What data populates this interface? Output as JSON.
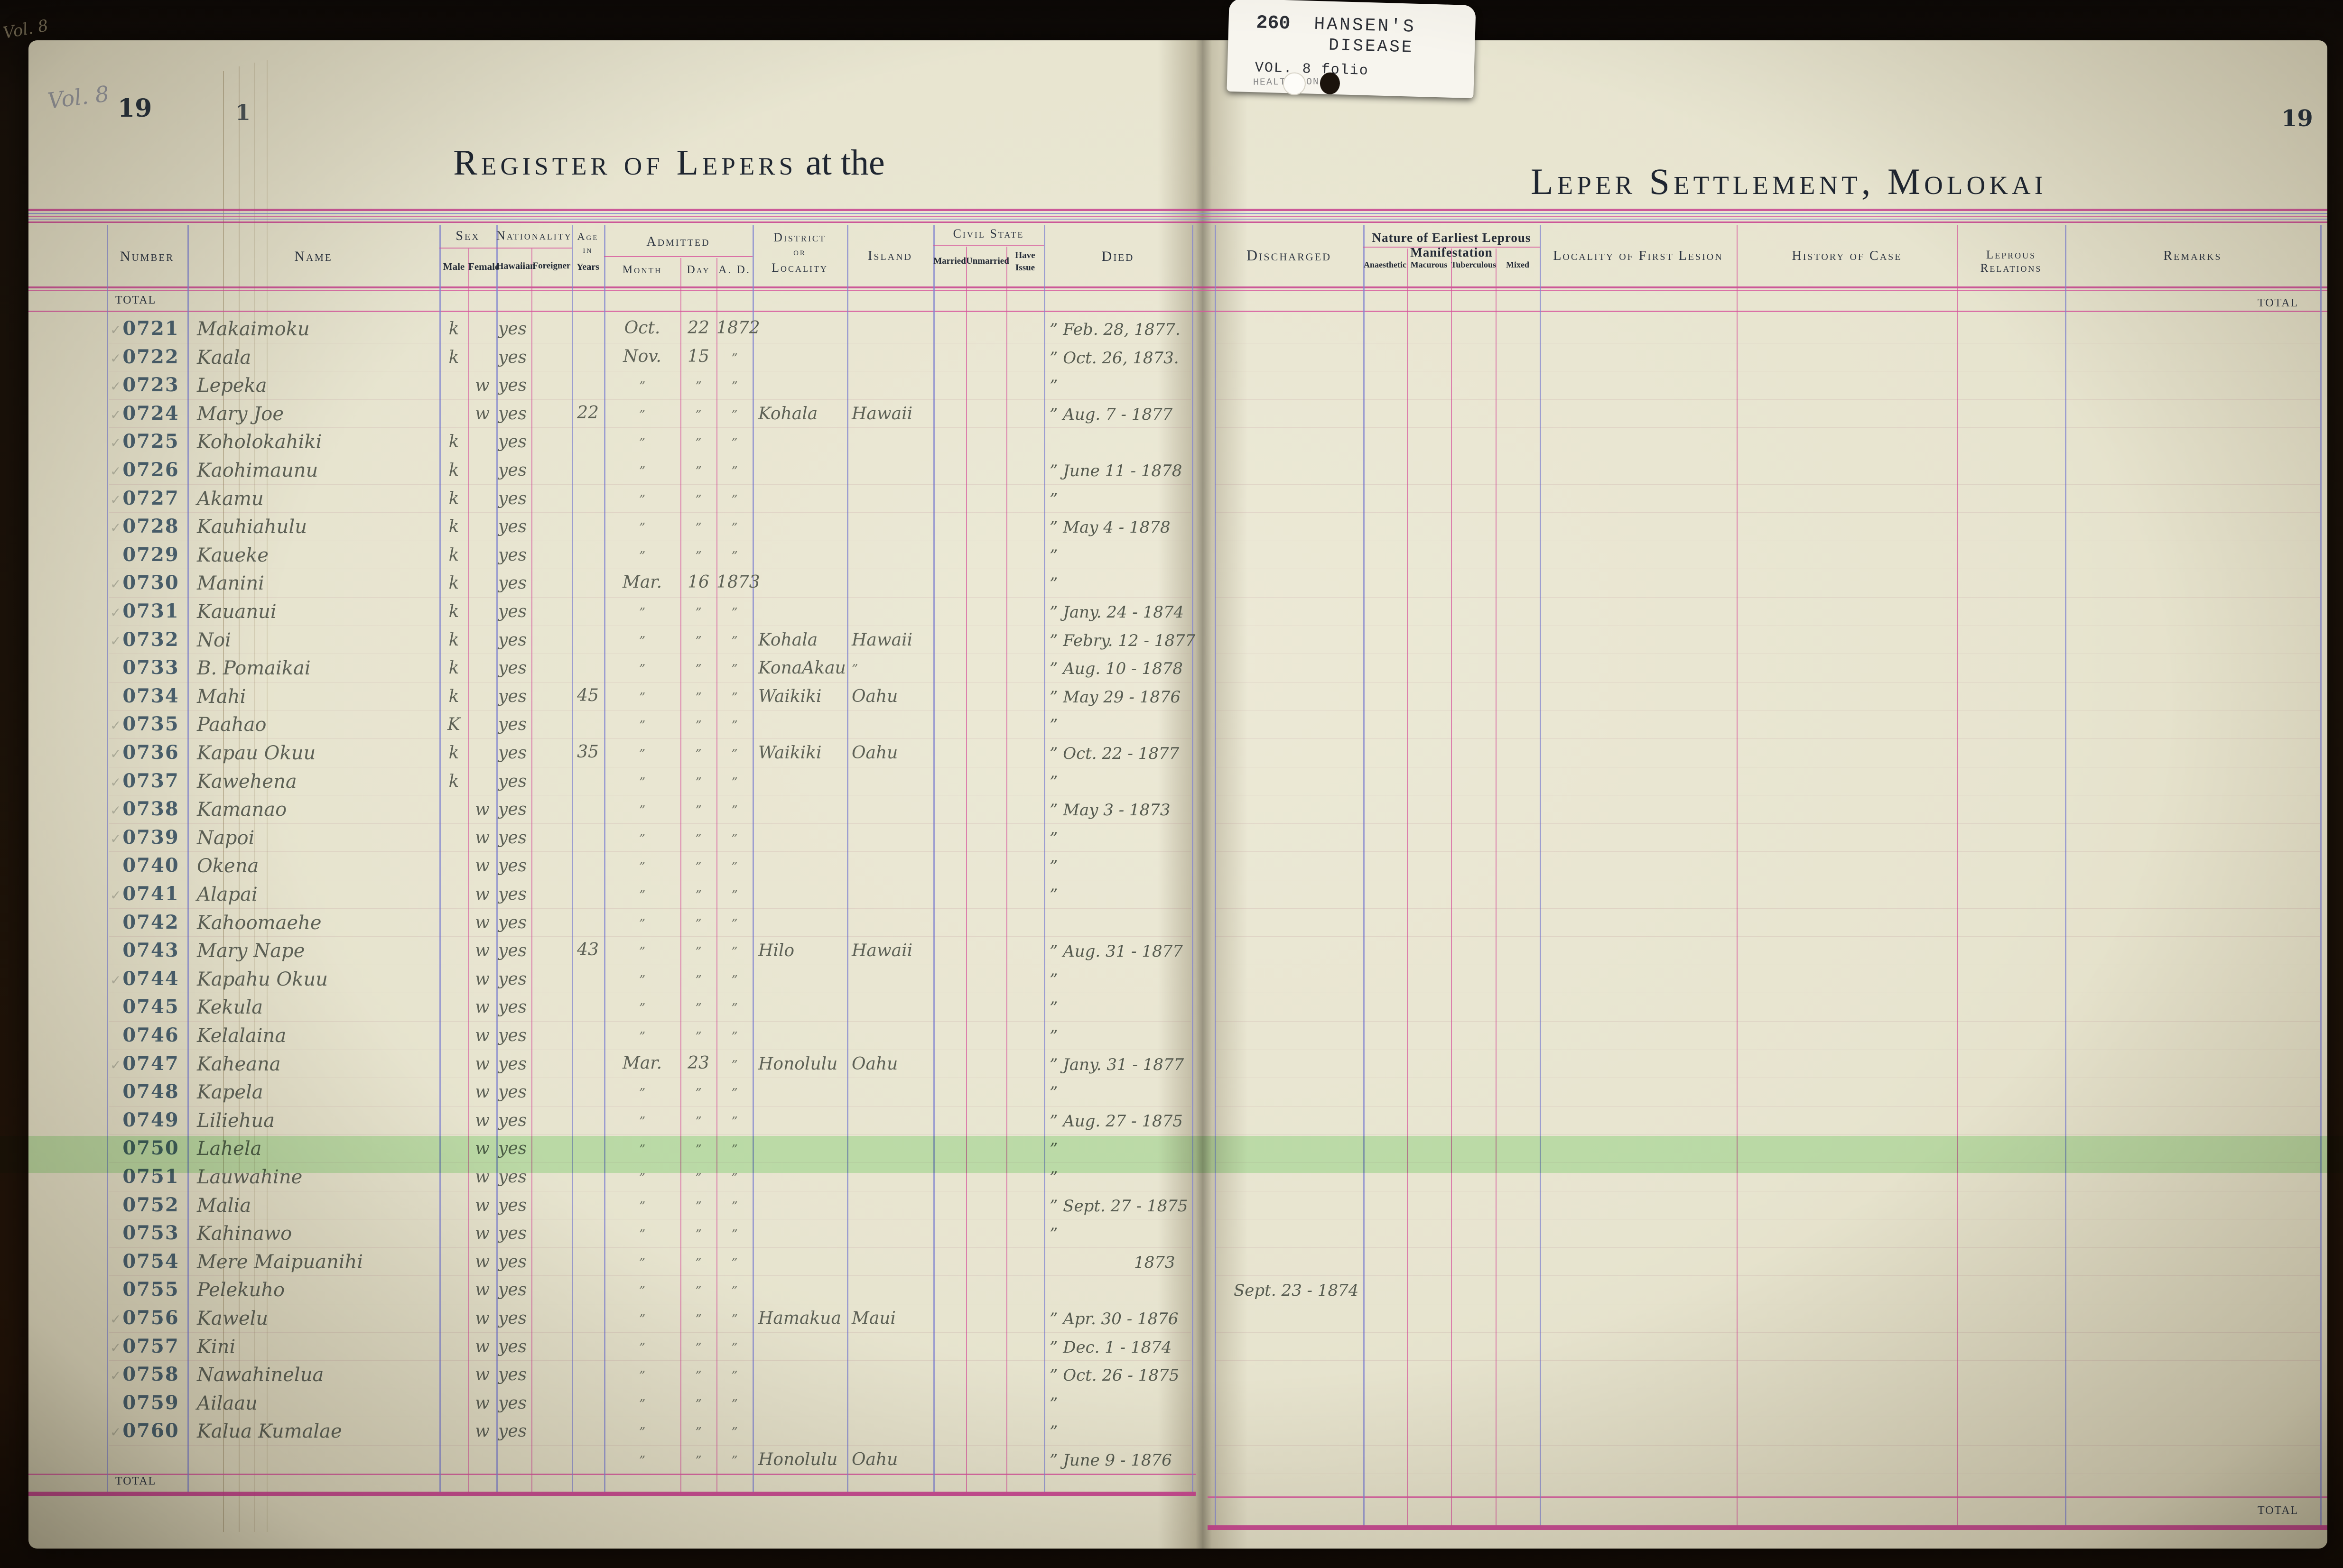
{
  "folio_tab": {
    "number": "260",
    "line1": "HANSEN'S",
    "line2": "DISEASE",
    "line3": "VOL. 8 folio",
    "line4": "HEALTH/CON"
  },
  "spine_notes": {
    "volume_note": "Vol. 8",
    "under_page_number": "1"
  },
  "left_page": {
    "page_number": "19",
    "title_main": "Register of Lepers",
    "title_suffix": "at the",
    "total_top_label": "TOTAL",
    "total_bottom_label": "TOTAL"
  },
  "right_page": {
    "page_number": "19",
    "title_main": "Leper Settlement, Molokai",
    "total_top_label": "TOTAL",
    "total_bottom_label": "TOTAL"
  },
  "columns": {
    "number": "Number",
    "name": "Name",
    "sex": "Sex",
    "male": "Male",
    "female": "Female",
    "nationality": "Nationality",
    "hawaiian": "Hawaiian",
    "foreigner": "Foreigner",
    "age_line1": "Age",
    "age_line2": "in",
    "age_line3": "Years",
    "admitted": "Admitted",
    "month": "Month",
    "day": "Day",
    "ad": "A. D.",
    "district_line1": "District",
    "district_line2": "or",
    "district_line3": "Locality",
    "island": "Island",
    "civil_state": "Civil State",
    "married": "Married",
    "unmarried": "Unmarried",
    "have_issue_line1": "Have",
    "have_issue_line2": "Issue",
    "died": "Died",
    "discharged": "Discharged",
    "nature": "Nature of Earliest Leprous Manifestation",
    "anaesthetic": "Anaesthetic",
    "macurous": "Macurous",
    "tuberculous": "Tuberculous",
    "mixed": "Mixed",
    "locality_first_lesion": "Locality of First Lesion",
    "history_of_case": "History of Case",
    "leprous_relations": "Leprous Relations",
    "remarks": "Remarks"
  },
  "highlight_color": "#9de89a",
  "rows": [
    {
      "n": "0721",
      "name": "Makaimoku",
      "sex": "k",
      "nat": "yes",
      "age": "",
      "mo": "Oct.",
      "dy": "22",
      "ad": "1872",
      "dist": "",
      "isl": "",
      "died": "Feb. 28, 1877.",
      "dd": true,
      "disch": "",
      "chk": true,
      "hl": false,
      "indent": false
    },
    {
      "n": "0722",
      "name": "Kaala",
      "sex": "k",
      "nat": "yes",
      "age": "",
      "mo": "Nov.",
      "dy": "15",
      "ad": "”",
      "dist": "",
      "isl": "",
      "died": "Oct. 26, 1873.",
      "dd": true,
      "disch": "",
      "chk": true,
      "hl": false,
      "indent": false
    },
    {
      "n": "0723",
      "name": "Lepeka",
      "sex": "w",
      "nat": "yes",
      "age": "",
      "mo": "”",
      "dy": "”",
      "ad": "”",
      "dist": "",
      "isl": "",
      "died": "",
      "dd": true,
      "disch": "",
      "chk": true,
      "hl": false,
      "indent": false
    },
    {
      "n": "0724",
      "name": "Mary Joe",
      "sex": "w",
      "nat": "yes",
      "age": "22",
      "mo": "”",
      "dy": "”",
      "ad": "”",
      "dist": "Kohala",
      "isl": "Hawaii",
      "died": "Aug. 7 - 1877",
      "dd": true,
      "disch": "",
      "chk": true,
      "hl": false,
      "indent": false
    },
    {
      "n": "0725",
      "name": "Koholokahiki",
      "sex": "k",
      "nat": "yes",
      "age": "",
      "mo": "”",
      "dy": "”",
      "ad": "”",
      "dist": "",
      "isl": "",
      "died": "",
      "dd": false,
      "disch": "",
      "chk": true,
      "hl": false,
      "indent": false
    },
    {
      "n": "0726",
      "name": "Kaohimaunu",
      "sex": "k",
      "nat": "yes",
      "age": "",
      "mo": "”",
      "dy": "”",
      "ad": "”",
      "dist": "",
      "isl": "",
      "died": "June 11 - 1878",
      "dd": true,
      "disch": "",
      "chk": true,
      "hl": false,
      "indent": false
    },
    {
      "n": "0727",
      "name": "Akamu",
      "sex": "k",
      "nat": "yes",
      "age": "",
      "mo": "”",
      "dy": "”",
      "ad": "”",
      "dist": "",
      "isl": "",
      "died": "",
      "dd": true,
      "disch": "",
      "chk": true,
      "hl": false,
      "indent": false
    },
    {
      "n": "0728",
      "name": "Kauhiahulu",
      "sex": "k",
      "nat": "yes",
      "age": "",
      "mo": "”",
      "dy": "”",
      "ad": "”",
      "dist": "",
      "isl": "",
      "died": "May 4 - 1878",
      "dd": true,
      "disch": "",
      "chk": true,
      "hl": false,
      "indent": false
    },
    {
      "n": "0729",
      "name": "Kaueke",
      "sex": "k",
      "nat": "yes",
      "age": "",
      "mo": "”",
      "dy": "”",
      "ad": "”",
      "dist": "",
      "isl": "",
      "died": "",
      "dd": true,
      "disch": "",
      "chk": false,
      "hl": false,
      "indent": false
    },
    {
      "n": "0730",
      "name": "Manini",
      "sex": "k",
      "nat": "yes",
      "age": "",
      "mo": "Mar.",
      "dy": "16",
      "ad": "1873",
      "dist": "",
      "isl": "",
      "died": "",
      "dd": true,
      "disch": "",
      "chk": true,
      "hl": false,
      "indent": false
    },
    {
      "n": "0731",
      "name": "Kauanui",
      "sex": "k",
      "nat": "yes",
      "age": "",
      "mo": "”",
      "dy": "”",
      "ad": "”",
      "dist": "",
      "isl": "",
      "died": "Jany. 24 - 1874",
      "dd": true,
      "disch": "",
      "chk": true,
      "hl": false,
      "indent": false
    },
    {
      "n": "0732",
      "name": "Noi",
      "sex": "k",
      "nat": "yes",
      "age": "",
      "mo": "”",
      "dy": "”",
      "ad": "”",
      "dist": "Kohala",
      "isl": "Hawaii",
      "died": "Febry. 12 - 1877",
      "dd": true,
      "disch": "",
      "chk": true,
      "hl": false,
      "indent": false
    },
    {
      "n": "0733",
      "name": "B. Pomaikai",
      "sex": "k",
      "nat": "yes",
      "age": "",
      "mo": "”",
      "dy": "”",
      "ad": "”",
      "dist": "KonaAkau",
      "isl": "”",
      "died": "Aug. 10 - 1878",
      "dd": true,
      "disch": "",
      "chk": false,
      "hl": false,
      "indent": false
    },
    {
      "n": "0734",
      "name": "Mahi",
      "sex": "k",
      "nat": "yes",
      "age": "45",
      "mo": "”",
      "dy": "”",
      "ad": "”",
      "dist": "Waikiki",
      "isl": "Oahu",
      "died": "May 29 - 1876",
      "dd": true,
      "disch": "",
      "chk": false,
      "hl": false,
      "indent": false
    },
    {
      "n": "0735",
      "name": "Paahao",
      "sex": "K",
      "nat": "yes",
      "age": "",
      "mo": "”",
      "dy": "”",
      "ad": "”",
      "dist": "",
      "isl": "",
      "died": "",
      "dd": true,
      "disch": "",
      "chk": true,
      "hl": false,
      "indent": false
    },
    {
      "n": "0736",
      "name": "Kapau Okuu",
      "sex": "k",
      "nat": "yes",
      "age": "35",
      "mo": "”",
      "dy": "”",
      "ad": "”",
      "dist": "Waikiki",
      "isl": "Oahu",
      "died": "Oct. 22 - 1877",
      "dd": true,
      "disch": "",
      "chk": true,
      "hl": false,
      "indent": false
    },
    {
      "n": "0737",
      "name": "Kawehena",
      "sex": "k",
      "nat": "yes",
      "age": "",
      "mo": "”",
      "dy": "”",
      "ad": "”",
      "dist": "",
      "isl": "",
      "died": "",
      "dd": true,
      "disch": "",
      "chk": true,
      "hl": false,
      "indent": false
    },
    {
      "n": "0738",
      "name": "Kamanao",
      "sex": "w",
      "nat": "yes",
      "age": "",
      "mo": "”",
      "dy": "”",
      "ad": "”",
      "dist": "",
      "isl": "",
      "died": "May 3 - 1873",
      "dd": true,
      "disch": "",
      "chk": true,
      "hl": false,
      "indent": false
    },
    {
      "n": "0739",
      "name": "Napoi",
      "sex": "w",
      "nat": "yes",
      "age": "",
      "mo": "”",
      "dy": "”",
      "ad": "”",
      "dist": "",
      "isl": "",
      "died": "",
      "dd": true,
      "disch": "",
      "chk": true,
      "hl": false,
      "indent": false
    },
    {
      "n": "0740",
      "name": "Okena",
      "sex": "w",
      "nat": "yes",
      "age": "",
      "mo": "”",
      "dy": "”",
      "ad": "”",
      "dist": "",
      "isl": "",
      "died": "",
      "dd": true,
      "disch": "",
      "chk": false,
      "hl": false,
      "indent": false
    },
    {
      "n": "0741",
      "name": "Alapai",
      "sex": "w",
      "nat": "yes",
      "age": "",
      "mo": "”",
      "dy": "”",
      "ad": "”",
      "dist": "",
      "isl": "",
      "died": "",
      "dd": true,
      "disch": "",
      "chk": true,
      "hl": false,
      "indent": false
    },
    {
      "n": "0742",
      "name": "Kahoomaehe",
      "sex": "w",
      "nat": "yes",
      "age": "",
      "mo": "”",
      "dy": "”",
      "ad": "”",
      "dist": "",
      "isl": "",
      "died": "",
      "dd": false,
      "disch": "",
      "chk": false,
      "hl": false,
      "indent": false
    },
    {
      "n": "0743",
      "name": "Mary Nape",
      "sex": "w",
      "nat": "yes",
      "age": "43",
      "mo": "”",
      "dy": "”",
      "ad": "”",
      "dist": "Hilo",
      "isl": "Hawaii",
      "died": "Aug. 31 - 1877",
      "dd": true,
      "disch": "",
      "chk": false,
      "hl": false,
      "indent": false
    },
    {
      "n": "0744",
      "name": "Kapahu Okuu",
      "sex": "w",
      "nat": "yes",
      "age": "",
      "mo": "”",
      "dy": "”",
      "ad": "”",
      "dist": "",
      "isl": "",
      "died": "",
      "dd": true,
      "disch": "",
      "chk": true,
      "hl": false,
      "indent": false
    },
    {
      "n": "0745",
      "name": "Kekula",
      "sex": "w",
      "nat": "yes",
      "age": "",
      "mo": "”",
      "dy": "”",
      "ad": "”",
      "dist": "",
      "isl": "",
      "died": "",
      "dd": true,
      "disch": "",
      "chk": false,
      "hl": false,
      "indent": false
    },
    {
      "n": "0746",
      "name": "Kelalaina",
      "sex": "w",
      "nat": "yes",
      "age": "",
      "mo": "”",
      "dy": "”",
      "ad": "”",
      "dist": "",
      "isl": "",
      "died": "",
      "dd": true,
      "disch": "",
      "chk": false,
      "hl": false,
      "indent": false
    },
    {
      "n": "0747",
      "name": "Kaheana",
      "sex": "w",
      "nat": "yes",
      "age": "",
      "mo": "Mar.",
      "dy": "23",
      "ad": "”",
      "dist": "Honolulu",
      "isl": "Oahu",
      "died": "Jany. 31 - 1877",
      "dd": true,
      "disch": "",
      "chk": true,
      "hl": false,
      "indent": false
    },
    {
      "n": "0748",
      "name": "Kapela",
      "sex": "w",
      "nat": "yes",
      "age": "",
      "mo": "”",
      "dy": "”",
      "ad": "”",
      "dist": "",
      "isl": "",
      "died": "",
      "dd": true,
      "disch": "",
      "chk": false,
      "hl": false,
      "indent": false
    },
    {
      "n": "0749",
      "name": "Liliehua",
      "sex": "w",
      "nat": "yes",
      "age": "",
      "mo": "”",
      "dy": "”",
      "ad": "”",
      "dist": "",
      "isl": "",
      "died": "Aug. 27 - 1875",
      "dd": true,
      "disch": "",
      "chk": false,
      "hl": false,
      "indent": false
    },
    {
      "n": "0750",
      "name": "Lahela",
      "sex": "w",
      "nat": "yes",
      "age": "",
      "mo": "”",
      "dy": "”",
      "ad": "”",
      "dist": "",
      "isl": "",
      "died": "",
      "dd": true,
      "disch": "",
      "chk": false,
      "hl": true,
      "indent": false
    },
    {
      "n": "0751",
      "name": "Lauwahine",
      "sex": "w",
      "nat": "yes",
      "age": "",
      "mo": "”",
      "dy": "”",
      "ad": "”",
      "dist": "",
      "isl": "",
      "died": "",
      "dd": true,
      "disch": "",
      "chk": false,
      "hl": false,
      "indent": false
    },
    {
      "n": "0752",
      "name": "Malia",
      "sex": "w",
      "nat": "yes",
      "age": "",
      "mo": "”",
      "dy": "”",
      "ad": "”",
      "dist": "",
      "isl": "",
      "died": "Sept. 27 - 1875",
      "dd": true,
      "disch": "",
      "chk": false,
      "hl": false,
      "indent": false
    },
    {
      "n": "0753",
      "name": "Kahinawo",
      "sex": "w",
      "nat": "yes",
      "age": "",
      "mo": "”",
      "dy": "”",
      "ad": "”",
      "dist": "",
      "isl": "",
      "died": "",
      "dd": true,
      "disch": "",
      "chk": false,
      "hl": false,
      "indent": false
    },
    {
      "n": "0754",
      "name": "Mere Maipuanihi",
      "sex": "w",
      "nat": "yes",
      "age": "",
      "mo": "”",
      "dy": "”",
      "ad": "”",
      "dist": "",
      "isl": "",
      "died": "1873",
      "dd": false,
      "disch": "",
      "chk": false,
      "hl": false,
      "indent": true
    },
    {
      "n": "0755",
      "name": "Pelekuho",
      "sex": "w",
      "nat": "yes",
      "age": "",
      "mo": "”",
      "dy": "”",
      "ad": "”",
      "dist": "",
      "isl": "",
      "died": "",
      "dd": false,
      "disch": "Sept. 23 - 1874",
      "chk": false,
      "hl": false,
      "indent": false
    },
    {
      "n": "0756",
      "name": "Kawelu",
      "sex": "w",
      "nat": "yes",
      "age": "",
      "mo": "”",
      "dy": "”",
      "ad": "”",
      "dist": "Hamakua",
      "isl": "Maui",
      "died": "Apr. 30 - 1876",
      "dd": true,
      "disch": "",
      "chk": true,
      "hl": false,
      "indent": false
    },
    {
      "n": "0757",
      "name": "Kini",
      "sex": "w",
      "nat": "yes",
      "age": "",
      "mo": "”",
      "dy": "”",
      "ad": "”",
      "dist": "",
      "isl": "",
      "died": "Dec. 1 - 1874",
      "dd": true,
      "disch": "",
      "chk": true,
      "hl": false,
      "indent": false
    },
    {
      "n": "0758",
      "name": "Nawahinelua",
      "sex": "w",
      "nat": "yes",
      "age": "",
      "mo": "”",
      "dy": "”",
      "ad": "”",
      "dist": "",
      "isl": "",
      "died": "Oct. 26 - 1875",
      "dd": true,
      "disch": "",
      "chk": true,
      "hl": false,
      "indent": false
    },
    {
      "n": "0759",
      "name": "Ailaau",
      "sex": "w",
      "nat": "yes",
      "age": "",
      "mo": "”",
      "dy": "”",
      "ad": "”",
      "dist": "",
      "isl": "",
      "died": "",
      "dd": true,
      "disch": "",
      "chk": false,
      "hl": false,
      "indent": false
    },
    {
      "n": "0760",
      "name": "Kalua Kumalae",
      "sex": "w",
      "nat": "yes",
      "age": "",
      "mo": "”",
      "dy": "”",
      "ad": "”",
      "dist": "",
      "isl": "",
      "died": "",
      "dd": true,
      "disch": "",
      "chk": true,
      "hl": false,
      "indent": false
    },
    {
      "n": "",
      "name": "",
      "sex": "",
      "nat": "",
      "age": "",
      "mo": "”",
      "dy": "”",
      "ad": "”",
      "dist": "Honolulu",
      "isl": "Oahu",
      "died": "June 9 - 1876",
      "dd": true,
      "disch": "",
      "chk": false,
      "hl": false,
      "indent": false
    }
  ]
}
